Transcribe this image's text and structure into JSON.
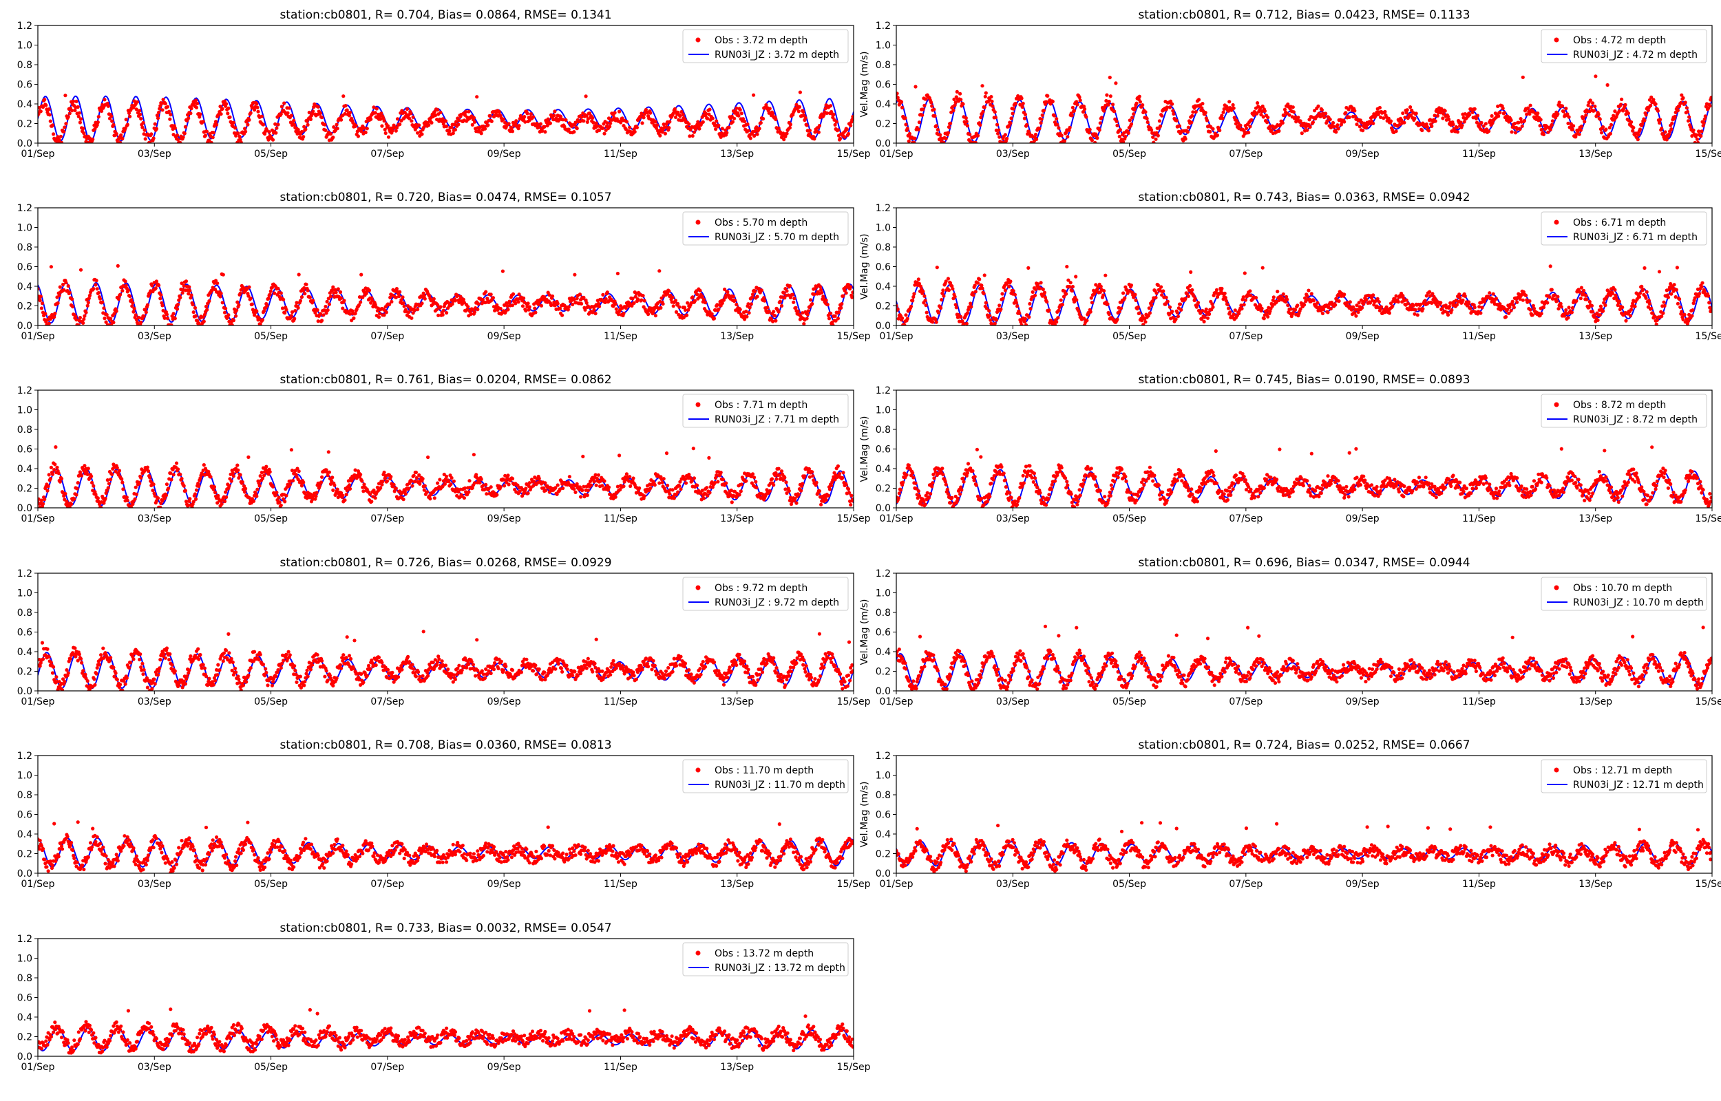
{
  "figure": {
    "x_tick_labels": [
      "01/Sep",
      "03/Sep",
      "05/Sep",
      "07/Sep",
      "09/Sep",
      "11/Sep",
      "13/Sep",
      "15/Sep"
    ],
    "y_tick_labels": [
      "0.0",
      "0.2",
      "0.4",
      "0.6",
      "0.8",
      "1.0",
      "1.2"
    ],
    "colors": {
      "obs": "#ff0000",
      "model": "#0000ff",
      "axes": "#000000"
    }
  },
  "chart_data": [
    {
      "type": "line",
      "title": "station:cb0801, R= 0.704, Bias= 0.0864, RMSE= 0.1341",
      "ylabel": "",
      "xlabel": "",
      "xlim": [
        "2023-09-01",
        "2023-09-15"
      ],
      "ylim": [
        0,
        1.2
      ],
      "grid": false,
      "legend": "top-right",
      "series": [
        {
          "name": "Obs : 3.72 m depth",
          "style": "dots",
          "mean": 0.21,
          "amp": 0.16,
          "peak": 0.58
        },
        {
          "name": "RUN03i_JZ : 3.72 m depth",
          "style": "line",
          "mean": 0.27,
          "amp": 0.2,
          "peak": 0.63
        }
      ]
    },
    {
      "type": "line",
      "title": "station:cb0801, R= 0.712, Bias= 0.0423, RMSE= 0.1133",
      "ylabel": "Vel.Mag (m/s)",
      "xlabel": "",
      "xlim": [
        "2023-09-01",
        "2023-09-15"
      ],
      "ylim": [
        0,
        1.2
      ],
      "grid": false,
      "legend": "top-right",
      "series": [
        {
          "name": "Obs : 4.72 m depth",
          "style": "dots",
          "mean": 0.24,
          "amp": 0.2,
          "peak": 0.7
        },
        {
          "name": "RUN03i_JZ : 4.72 m depth",
          "style": "line",
          "mean": 0.25,
          "amp": 0.19,
          "peak": 0.62
        }
      ]
    },
    {
      "type": "line",
      "title": "station:cb0801, R= 0.720, Bias= 0.0474, RMSE= 0.1057",
      "ylabel": "",
      "xlabel": "",
      "xlim": [
        "2023-09-01",
        "2023-09-15"
      ],
      "ylim": [
        0,
        1.2
      ],
      "grid": false,
      "legend": "top-right",
      "series": [
        {
          "name": "Obs : 5.70 m depth",
          "style": "dots",
          "mean": 0.22,
          "amp": 0.17,
          "peak": 0.61
        },
        {
          "name": "RUN03i_JZ : 5.70 m depth",
          "style": "line",
          "mean": 0.25,
          "amp": 0.18,
          "peak": 0.6
        }
      ]
    },
    {
      "type": "line",
      "title": "station:cb0801, R= 0.743, Bias= 0.0363, RMSE= 0.0942",
      "ylabel": "Vel.Mag (m/s)",
      "xlabel": "",
      "xlim": [
        "2023-09-01",
        "2023-09-15"
      ],
      "ylim": [
        0,
        1.2
      ],
      "grid": false,
      "legend": "top-right",
      "series": [
        {
          "name": "Obs : 6.71 m depth",
          "style": "dots",
          "mean": 0.22,
          "amp": 0.17,
          "peak": 0.62
        },
        {
          "name": "RUN03i_JZ : 6.71 m depth",
          "style": "line",
          "mean": 0.24,
          "amp": 0.17,
          "peak": 0.6
        }
      ]
    },
    {
      "type": "line",
      "title": "station:cb0801, R= 0.761, Bias= 0.0204, RMSE= 0.0862",
      "ylabel": "",
      "xlabel": "",
      "xlim": [
        "2023-09-01",
        "2023-09-15"
      ],
      "ylim": [
        0,
        1.2
      ],
      "grid": false,
      "legend": "top-right",
      "series": [
        {
          "name": "Obs : 7.71 m depth",
          "style": "dots",
          "mean": 0.22,
          "amp": 0.16,
          "peak": 0.63
        },
        {
          "name": "RUN03i_JZ : 7.71 m depth",
          "style": "line",
          "mean": 0.23,
          "amp": 0.16,
          "peak": 0.54
        }
      ]
    },
    {
      "type": "line",
      "title": "station:cb0801, R= 0.745, Bias= 0.0190, RMSE= 0.0893",
      "ylabel": "Vel.Mag (m/s)",
      "xlabel": "",
      "xlim": [
        "2023-09-01",
        "2023-09-15"
      ],
      "ylim": [
        0,
        1.2
      ],
      "grid": false,
      "legend": "top-right",
      "series": [
        {
          "name": "Obs : 8.72 m depth",
          "style": "dots",
          "mean": 0.22,
          "amp": 0.15,
          "peak": 0.63
        },
        {
          "name": "RUN03i_JZ : 8.72 m depth",
          "style": "line",
          "mean": 0.23,
          "amp": 0.16,
          "peak": 0.54
        }
      ]
    },
    {
      "type": "line",
      "title": "station:cb0801, R= 0.726, Bias= 0.0268, RMSE= 0.0929",
      "ylabel": "",
      "xlabel": "",
      "xlim": [
        "2023-09-01",
        "2023-09-15"
      ],
      "ylim": [
        0,
        1.2
      ],
      "grid": false,
      "legend": "top-right",
      "series": [
        {
          "name": "Obs : 9.72 m depth",
          "style": "dots",
          "mean": 0.22,
          "amp": 0.15,
          "peak": 0.61
        },
        {
          "name": "RUN03i_JZ : 9.72 m depth",
          "style": "line",
          "mean": 0.23,
          "amp": 0.16,
          "peak": 0.51
        }
      ]
    },
    {
      "type": "line",
      "title": "station:cb0801, R= 0.696, Bias= 0.0347, RMSE= 0.0944",
      "ylabel": "Vel.Mag (m/s)",
      "xlabel": "",
      "xlim": [
        "2023-09-01",
        "2023-09-15"
      ],
      "ylim": [
        0,
        1.2
      ],
      "grid": false,
      "legend": "top-right",
      "series": [
        {
          "name": "Obs : 10.70 m depth",
          "style": "dots",
          "mean": 0.21,
          "amp": 0.14,
          "peak": 0.66
        },
        {
          "name": "RUN03i_JZ : 10.70 m depth",
          "style": "line",
          "mean": 0.23,
          "amp": 0.15,
          "peak": 0.52
        }
      ]
    },
    {
      "type": "line",
      "title": "station:cb0801, R= 0.708, Bias= 0.0360, RMSE= 0.0813",
      "ylabel": "",
      "xlabel": "",
      "xlim": [
        "2023-09-01",
        "2023-09-15"
      ],
      "ylim": [
        0,
        1.2
      ],
      "grid": false,
      "legend": "top-right",
      "series": [
        {
          "name": "Obs : 11.70 m depth",
          "style": "dots",
          "mean": 0.2,
          "amp": 0.12,
          "peak": 0.55
        },
        {
          "name": "RUN03i_JZ : 11.70 m depth",
          "style": "line",
          "mean": 0.23,
          "amp": 0.13,
          "peak": 0.45
        }
      ]
    },
    {
      "type": "line",
      "title": "station:cb0801, R= 0.724, Bias= 0.0252, RMSE= 0.0667",
      "ylabel": "Vel.Mag (m/s)",
      "xlabel": "",
      "xlim": [
        "2023-09-01",
        "2023-09-15"
      ],
      "ylim": [
        0,
        1.2
      ],
      "grid": false,
      "legend": "top-right",
      "series": [
        {
          "name": "Obs : 12.71 m depth",
          "style": "dots",
          "mean": 0.19,
          "amp": 0.1,
          "peak": 0.53
        },
        {
          "name": "RUN03i_JZ : 12.71 m depth",
          "style": "line",
          "mean": 0.22,
          "amp": 0.11,
          "peak": 0.4
        }
      ]
    },
    {
      "type": "line",
      "title": "station:cb0801, R= 0.733, Bias= 0.0032, RMSE= 0.0547",
      "ylabel": "",
      "xlabel": "",
      "xlim": [
        "2023-09-01",
        "2023-09-15"
      ],
      "ylim": [
        0,
        1.2
      ],
      "grid": false,
      "legend": "top-right",
      "series": [
        {
          "name": "Obs : 13.72 m depth",
          "style": "dots",
          "mean": 0.19,
          "amp": 0.09,
          "peak": 0.48
        },
        {
          "name": "RUN03i_JZ : 13.72 m depth",
          "style": "line",
          "mean": 0.19,
          "amp": 0.1,
          "peak": 0.35
        }
      ]
    }
  ]
}
